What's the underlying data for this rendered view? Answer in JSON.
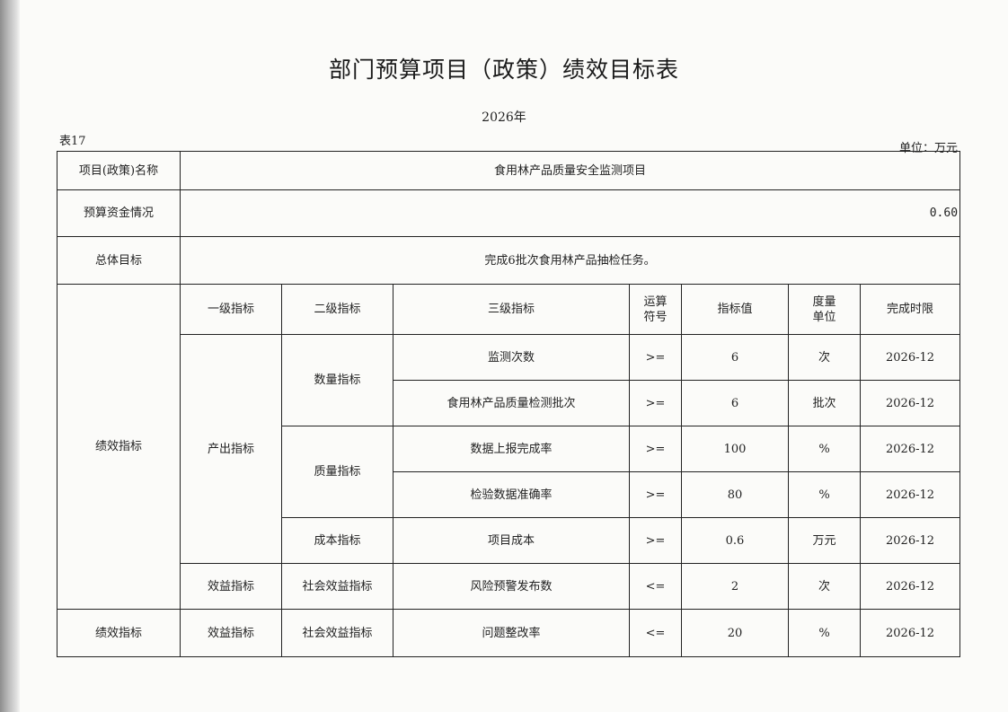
{
  "title": "部门预算项目（政策）绩效目标表",
  "year": "2026年",
  "table_no": "表17",
  "unit": "单位：万元",
  "project_name_label": "项目(政策)名称",
  "project_name": "食用林产品质量安全监测项目",
  "budget_label": "预算资金情况",
  "budget": "0.60",
  "goal_label": "总体目标",
  "goal": "完成6批次食用林产品抽检任务。",
  "perf_label": "绩效指标",
  "headers": [
    "一级指标",
    "二级指标",
    "三级指标",
    "运算\n符号",
    "指标值",
    "度量\n单位",
    "完成时限"
  ],
  "level1": [
    "产出指标",
    "效益指标"
  ],
  "level2": [
    "数量指标",
    "质量指标",
    "成本指标",
    "社会效益指标"
  ],
  "rows": [
    {
      "name": "监测次数",
      "op": ">=",
      "value": "6",
      "unit": "次",
      "deadline": "2026-12"
    },
    {
      "name": "食用林产品质量检测批次",
      "op": ">=",
      "value": "6",
      "unit": "批次",
      "deadline": "2026-12"
    },
    {
      "name": "数据上报完成率",
      "op": ">=",
      "value": "100",
      "unit": "%",
      "deadline": "2026-12"
    },
    {
      "name": "检验数据准确率",
      "op": ">=",
      "value": "80",
      "unit": "%",
      "deadline": "2026-12"
    },
    {
      "name": "项目成本",
      "op": ">=",
      "value": "0.6",
      "unit": "万元",
      "deadline": "2026-12"
    },
    {
      "name": "风险预警发布数",
      "op": "<=",
      "value": "2",
      "unit": "次",
      "deadline": "2026-12"
    }
  ],
  "extra": {
    "perf_label": "绩效指标",
    "level1": "效益指标",
    "level2": "社会效益指标",
    "name": "问题整改率",
    "op": "<=",
    "value": "20",
    "unit": "%",
    "deadline": "2026-12"
  }
}
